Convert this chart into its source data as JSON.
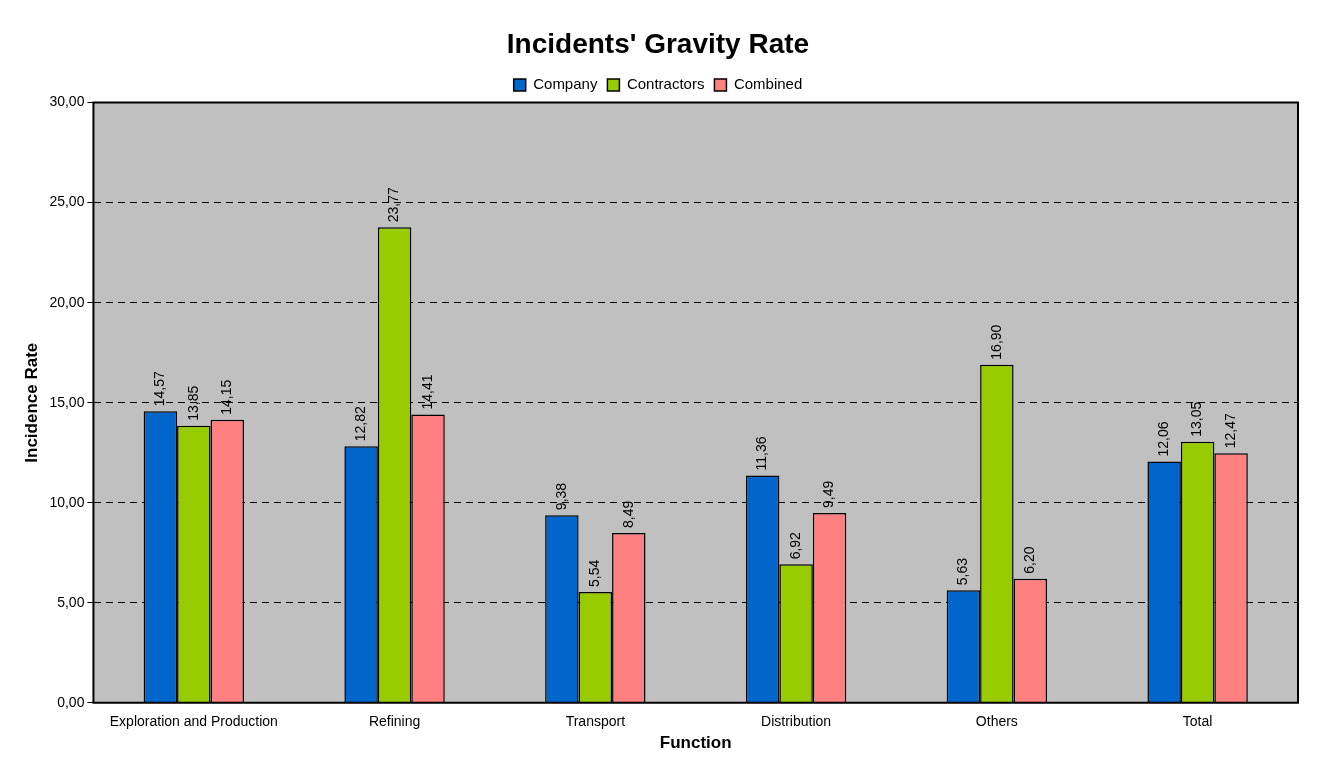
{
  "chart_data": {
    "type": "bar",
    "title": "Incidents' Gravity Rate",
    "xlabel": "Function",
    "ylabel": "Incidence Rate",
    "categories": [
      "Exploration and Production",
      "Refining",
      "Transport",
      "Distribution",
      "Others",
      "Total"
    ],
    "series": [
      {
        "name": "Company",
        "color": "#0066cc",
        "values": [
          14.57,
          12.82,
          9.38,
          11.36,
          5.63,
          12.06
        ],
        "value_labels": [
          "14,57",
          "12,82",
          "9,38",
          "11,36",
          "5,63",
          "12,06"
        ]
      },
      {
        "name": "Contractors",
        "color": "#99cc00",
        "values": [
          13.85,
          23.77,
          5.54,
          6.92,
          16.9,
          13.05
        ],
        "value_labels": [
          "13,85",
          "23,77",
          "5,54",
          "6,92",
          "16,90",
          "13,05"
        ]
      },
      {
        "name": "Combined",
        "color": "#ff8080",
        "values": [
          14.15,
          14.41,
          8.49,
          9.49,
          6.2,
          12.47
        ],
        "value_labels": [
          "14,15",
          "14,41",
          "8,49",
          "9,49",
          "6,20",
          "12,47"
        ]
      }
    ],
    "ylim": [
      0,
      30
    ],
    "yticks": [
      {
        "value": 0,
        "label": "0,00"
      },
      {
        "value": 5,
        "label": "5,00"
      },
      {
        "value": 10,
        "label": "10,00"
      },
      {
        "value": 15,
        "label": "15,00"
      },
      {
        "value": 20,
        "label": "20,00"
      },
      {
        "value": 25,
        "label": "25,00"
      },
      {
        "value": 30,
        "label": "30,00"
      }
    ],
    "grid": "y",
    "legend": "top"
  }
}
